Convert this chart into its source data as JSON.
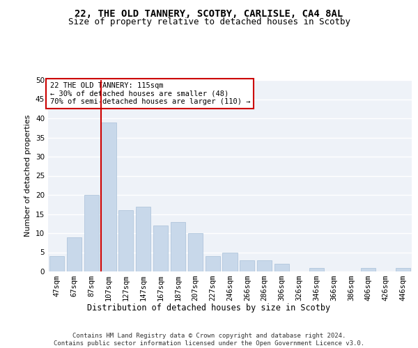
{
  "title1": "22, THE OLD TANNERY, SCOTBY, CARLISLE, CA4 8AL",
  "title2": "Size of property relative to detached houses in Scotby",
  "xlabel": "Distribution of detached houses by size in Scotby",
  "ylabel": "Number of detached properties",
  "bar_color": "#c8d8ea",
  "bar_edge_color": "#a8c0d8",
  "background_color": "#eef2f8",
  "grid_color": "#ffffff",
  "categories": [
    "47sqm",
    "67sqm",
    "87sqm",
    "107sqm",
    "127sqm",
    "147sqm",
    "167sqm",
    "187sqm",
    "207sqm",
    "227sqm",
    "246sqm",
    "266sqm",
    "286sqm",
    "306sqm",
    "326sqm",
    "346sqm",
    "366sqm",
    "386sqm",
    "406sqm",
    "426sqm",
    "446sqm"
  ],
  "values": [
    4,
    9,
    20,
    39,
    16,
    17,
    12,
    13,
    10,
    4,
    5,
    3,
    3,
    2,
    0,
    1,
    0,
    0,
    1,
    0,
    1
  ],
  "vline_color": "#cc0000",
  "ylim": [
    0,
    50
  ],
  "yticks": [
    0,
    5,
    10,
    15,
    20,
    25,
    30,
    35,
    40,
    45,
    50
  ],
  "annotation_text": "22 THE OLD TANNERY: 115sqm\n← 30% of detached houses are smaller (48)\n70% of semi-detached houses are larger (110) →",
  "annotation_box_color": "#ffffff",
  "annotation_box_edge": "#cc0000",
  "footer_text": "Contains HM Land Registry data © Crown copyright and database right 2024.\nContains public sector information licensed under the Open Government Licence v3.0.",
  "title1_fontsize": 10,
  "title2_fontsize": 9,
  "xlabel_fontsize": 8.5,
  "ylabel_fontsize": 8,
  "tick_fontsize": 7.5,
  "annotation_fontsize": 7.5,
  "footer_fontsize": 6.5
}
